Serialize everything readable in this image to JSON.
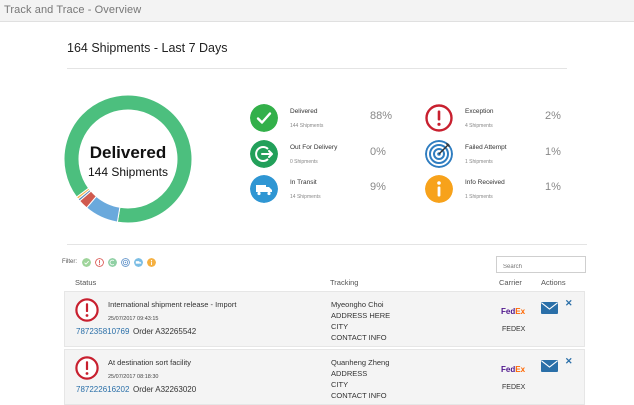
{
  "window": {
    "title": "Track and Trace - Overview"
  },
  "summary": {
    "heading": "164 Shipments - Last 7 Days"
  },
  "donut": {
    "label": "Delivered",
    "count_text": "144 Shipments"
  },
  "stats": [
    {
      "name": "Delivered",
      "sub": "144 Shipments",
      "pct": "88%",
      "color": "#33b04a",
      "icon": "check-icon"
    },
    {
      "name": "Out For Delivery",
      "sub": "0 Shipments",
      "pct": "0%",
      "color": "#22a05a",
      "icon": "out-for-delivery-icon"
    },
    {
      "name": "In Transit",
      "sub": "14 Shipments",
      "pct": "9%",
      "color": "#2f96d3",
      "icon": "truck-icon"
    },
    {
      "name": "Exception",
      "sub": "4 Shipments",
      "pct": "2%",
      "color": "#c8202f",
      "icon": "exclamation-icon"
    },
    {
      "name": "Failed Attempt",
      "sub": "1 Shipments",
      "pct": "1%",
      "color": "#2f7dc0",
      "icon": "target-icon"
    },
    {
      "name": "Info Received",
      "sub": "1 Shipments",
      "pct": "1%",
      "color": "#f7a21b",
      "icon": "info-icon"
    }
  ],
  "filter": {
    "label": "Filter:"
  },
  "search": {
    "placeholder": "Search"
  },
  "table": {
    "headers": {
      "status": "Status",
      "tracking": "Tracking",
      "carrier": "Carrier",
      "actions": "Actions"
    },
    "rows": [
      {
        "status": "International shipment release - Import",
        "time": "25/07/2017 09:43:15",
        "tracking_number": "787235810769",
        "order": "Order A32265542",
        "address": [
          "Myeongho Choi",
          "ADDRESS HERE",
          "CITY",
          "CONTACT INFO"
        ],
        "carrier_logo_fe": "Fed",
        "carrier_logo_ex": "Ex",
        "carrier": "FEDEX"
      },
      {
        "status": "At destination sort facility",
        "time": "25/07/2017 08:18:30",
        "tracking_number": "787222616202",
        "order": "Order A32263020",
        "address": [
          "Quanheng Zheng",
          "ADDRESS",
          "CITY",
          "CONTACT INFO"
        ],
        "carrier_logo_fe": "Fed",
        "carrier_logo_ex": "Ex",
        "carrier": "FEDEX"
      }
    ]
  },
  "chart_data": {
    "type": "pie",
    "title": "",
    "categories": [
      "Delivered",
      "Out For Delivery",
      "In Transit",
      "Exception",
      "Failed Attempt",
      "Info Received"
    ],
    "values": [
      144,
      0,
      14,
      4,
      1,
      1
    ],
    "colors": [
      "#4cbf7e",
      "#27a35c",
      "#6aa9dc",
      "#d05a4f",
      "#5e86b8",
      "#f2b24a"
    ],
    "donut": true
  }
}
